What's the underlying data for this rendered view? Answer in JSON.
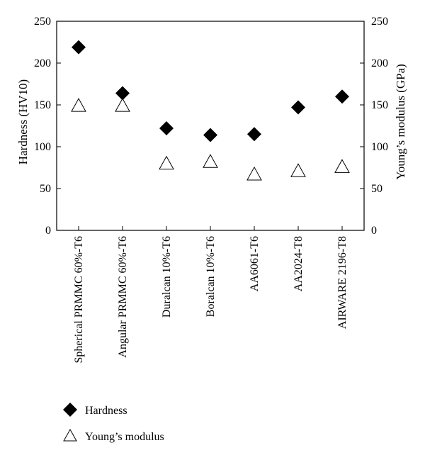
{
  "chart_data": {
    "type": "scatter",
    "categories": [
      "Spherical PRMMC 60%-T6",
      "Angular PRMMC 60%-T6",
      "Duralcan 10%-T6",
      "Boralcan 10%-T6",
      "AA6061-T6",
      "AA2024-T8",
      "AIRWARE 2196-T8"
    ],
    "series": [
      {
        "name": "Hardness",
        "marker": "filled-diamond",
        "axis": "left",
        "values": [
          219,
          164,
          122,
          114,
          115,
          147,
          160
        ]
      },
      {
        "name": "Young's modulus",
        "marker": "open-triangle",
        "axis": "right",
        "values": [
          149,
          149,
          80,
          82,
          67,
          71,
          76
        ]
      }
    ],
    "ylabel": "Hardness (HV10)",
    "y2label": "Young's modulus (GPa)",
    "ylim": [
      0,
      250
    ],
    "y2lim": [
      0,
      250
    ],
    "yticks": [
      0,
      50,
      100,
      150,
      200,
      250
    ],
    "y2ticks": [
      0,
      50,
      100,
      150,
      200,
      250
    ],
    "grid": false,
    "legend_position": "bottom-left"
  },
  "legend": {
    "hardness_label": "Hardness",
    "modulus_label": "Young’s modulus"
  },
  "axes": {
    "left_title": "Hardness (HV10)",
    "right_title": "Young’s modulus (GPa)"
  }
}
